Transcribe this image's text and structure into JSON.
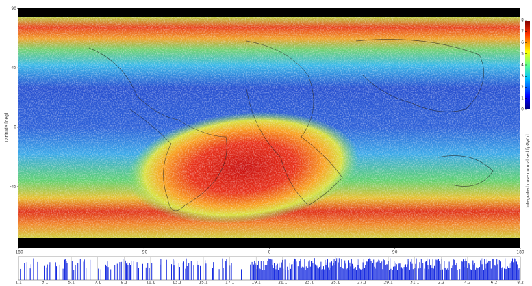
{
  "map": {
    "y_axis_label": "Latitude [deg]",
    "yticks": [
      90,
      45,
      0,
      -45
    ],
    "xticks": [
      -180,
      -90,
      0,
      90,
      180
    ],
    "colorbar": {
      "label": "Integrated dose normalised [μGy/h]",
      "ticks": [
        0,
        1,
        2,
        3,
        4,
        5,
        6,
        7,
        8
      ]
    }
  },
  "timeline": {
    "dates": [
      "1.1",
      "3.1",
      "5.1",
      "7.1",
      "9.1",
      "11.1",
      "13.1",
      "15.1",
      "17.1",
      "19.1",
      "21.1",
      "23.1",
      "25.1",
      "27.1",
      "29.1",
      "31.1",
      "2.2",
      "4.2",
      "6.2",
      "8.2"
    ]
  }
}
